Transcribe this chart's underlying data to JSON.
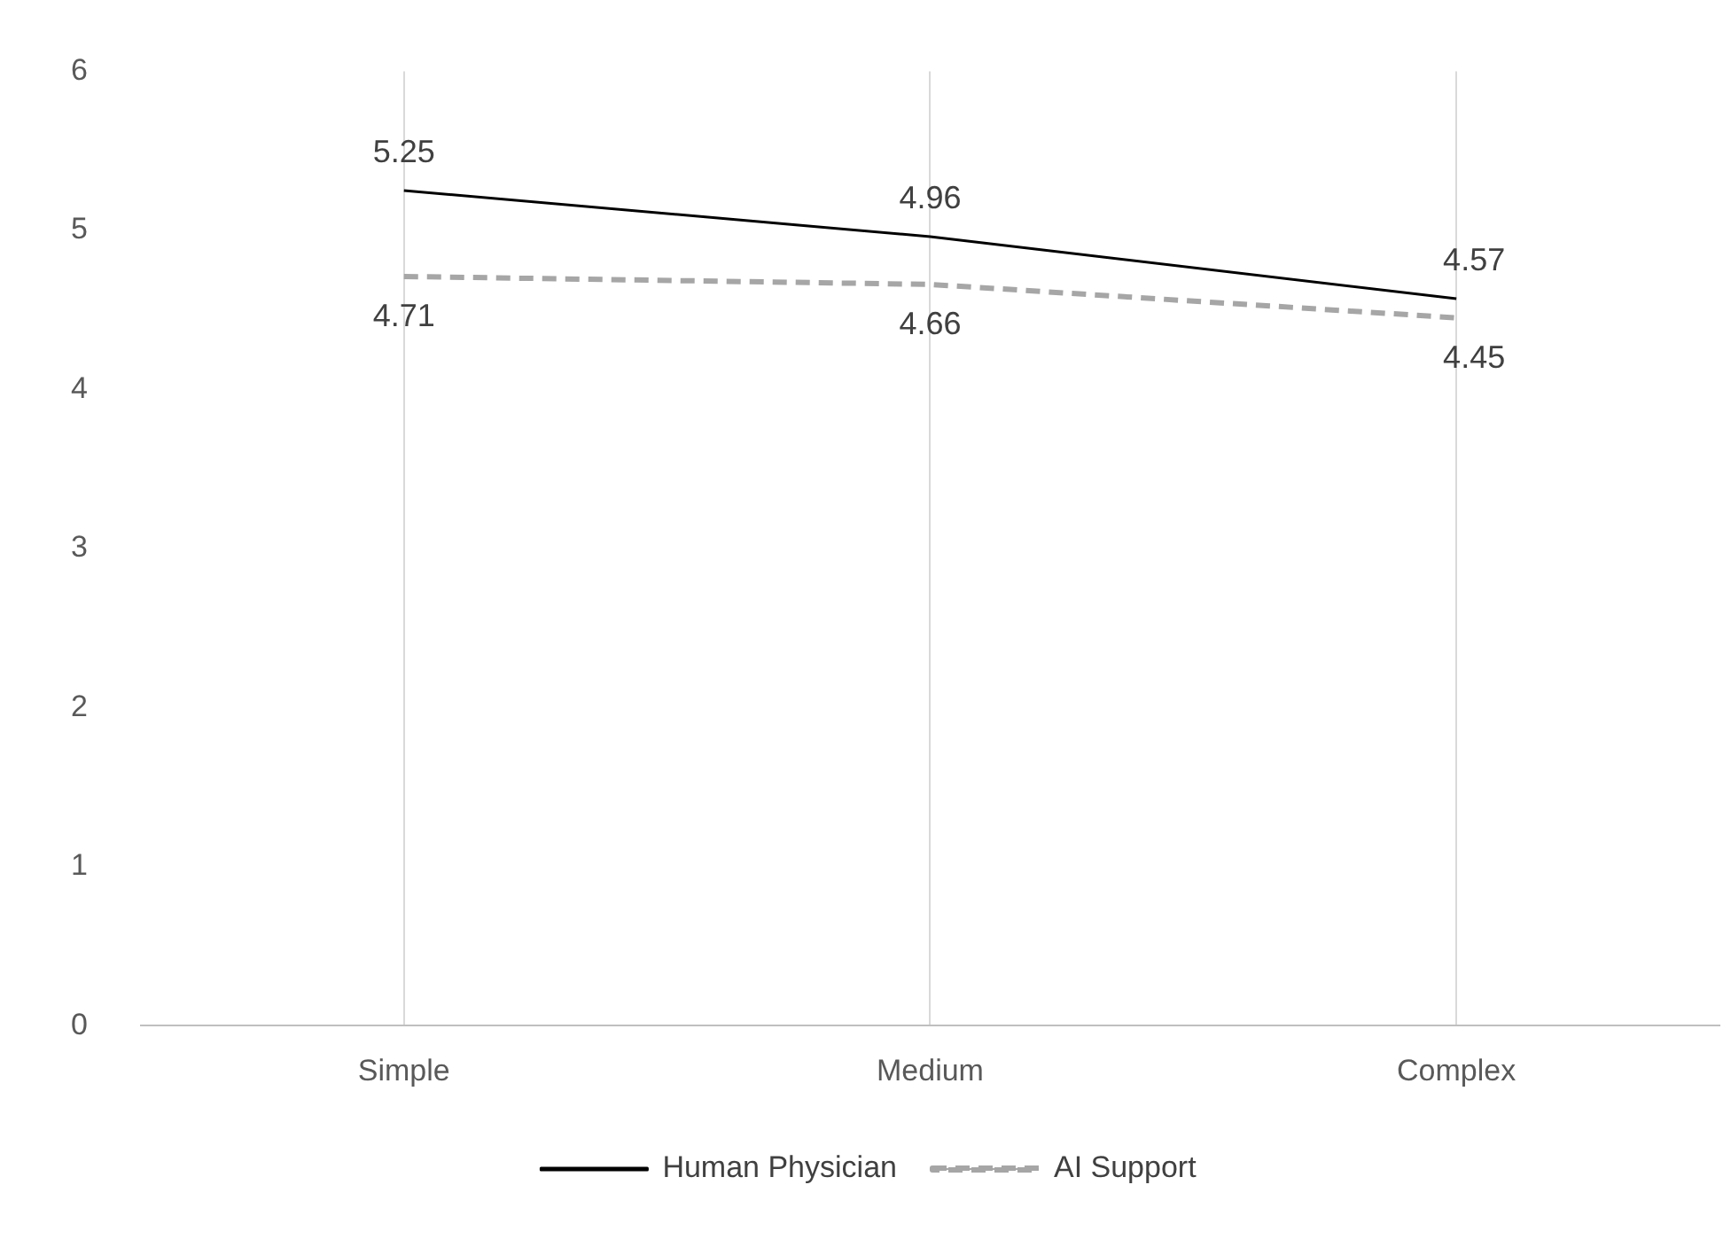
{
  "chart_data": {
    "type": "line",
    "categories": [
      "Simple",
      "Medium",
      "Complex"
    ],
    "series": [
      {
        "name": "Human Physician",
        "color": "#000000",
        "values": [
          5.25,
          4.96,
          4.57
        ],
        "line_style": "solid"
      },
      {
        "name": "AI Support",
        "color": "#a6a6a6",
        "values": [
          4.71,
          4.66,
          4.45
        ],
        "line_style": "dashed"
      }
    ],
    "ylim": [
      0,
      6
    ],
    "yticks": [
      0,
      1,
      2,
      3,
      4,
      5,
      6
    ],
    "grid": "x",
    "legend": "bottom",
    "data_labels": true,
    "marker": "none"
  }
}
